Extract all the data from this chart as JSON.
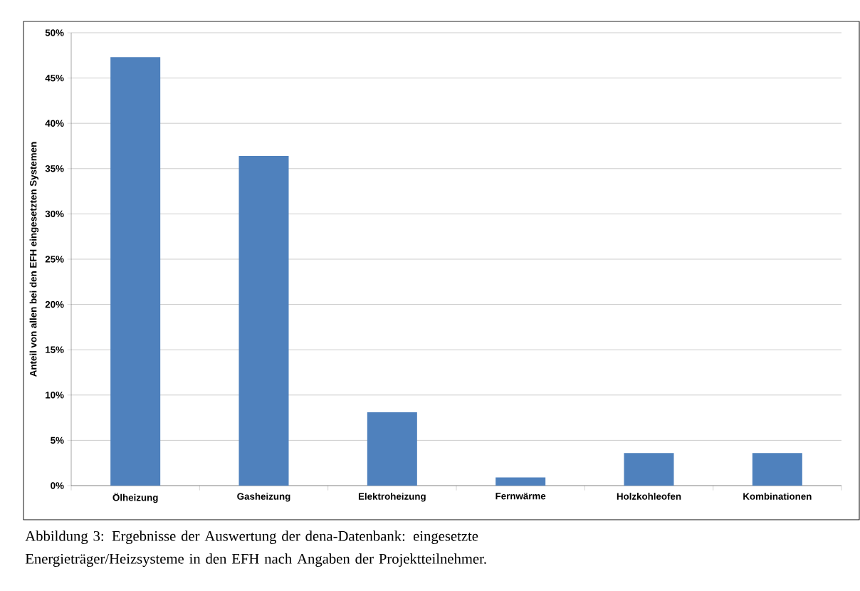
{
  "chart_data": {
    "type": "bar",
    "ylabel": "Anteil von allen bei den EFH eingesetzten Systemen",
    "categories": [
      "Ölheizung",
      "Gasheizung",
      "Elektroheizung",
      "Fernwärme",
      "Holzkohleofen",
      "Kombinationen"
    ],
    "values": [
      47.3,
      36.4,
      8.1,
      0.9,
      3.6,
      3.6
    ],
    "color": "#4f81bd",
    "ylim": [
      0,
      50
    ],
    "yticks": [
      {
        "value": 0,
        "label": "0%"
      },
      {
        "value": 5,
        "label": "5%"
      },
      {
        "value": 10,
        "label": "10%"
      },
      {
        "value": 15,
        "label": "15%"
      },
      {
        "value": 20,
        "label": "20%"
      },
      {
        "value": 25,
        "label": "25%"
      },
      {
        "value": 30,
        "label": "30%"
      },
      {
        "value": 35,
        "label": "35%"
      },
      {
        "value": 40,
        "label": "40%"
      },
      {
        "value": 45,
        "label": "45%"
      },
      {
        "value": 50,
        "label": "50%"
      }
    ],
    "grid": "y",
    "annotations": [
      "Abbildung 3: Ergebnisse der Auswertung der dena-Datenbank: eingesetzte Energieträger/Heizsysteme in den EFH nach Angaben der Projektteilnehmer."
    ]
  }
}
